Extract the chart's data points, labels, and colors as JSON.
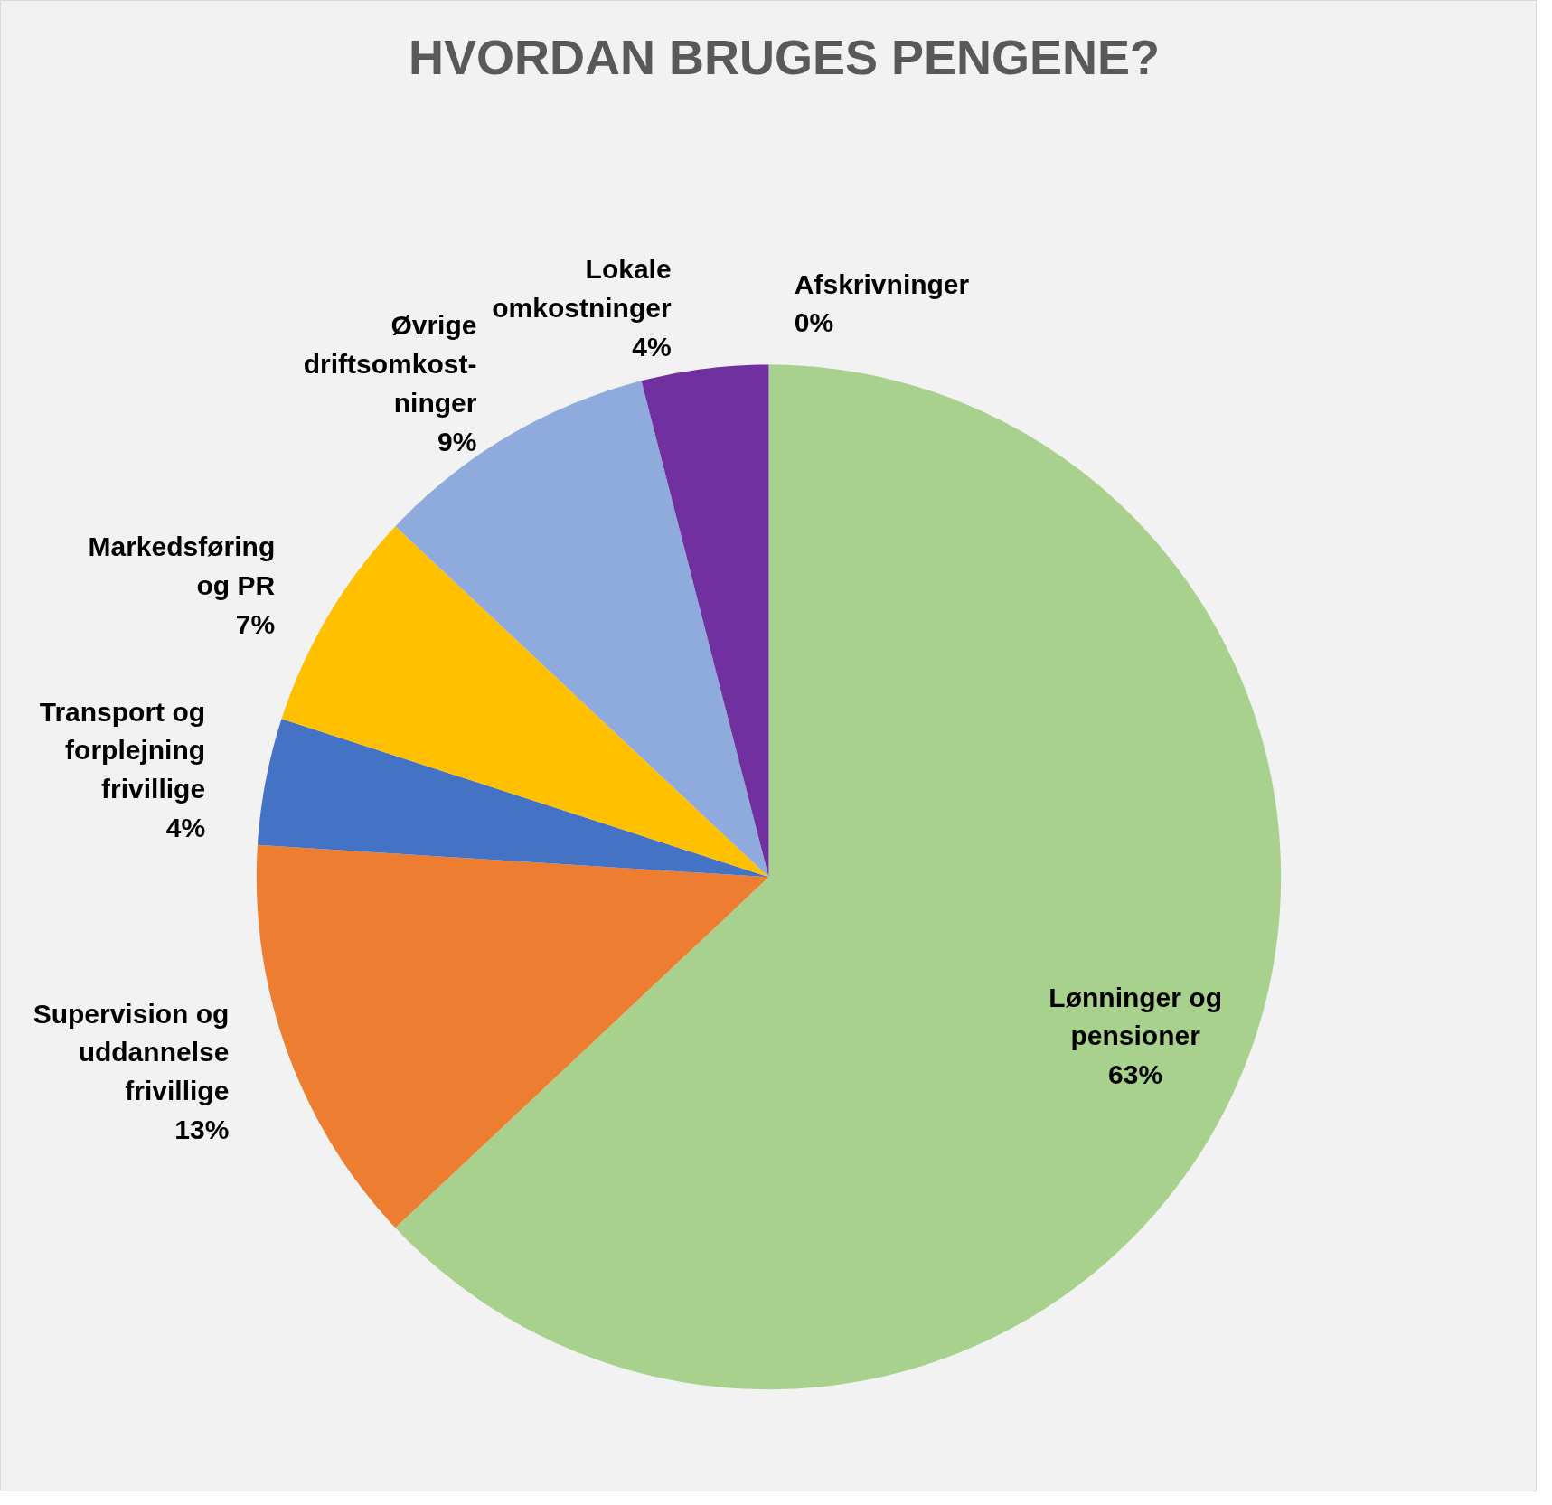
{
  "chart_data": {
    "type": "pie",
    "title": "HVORDAN BRUGES PENGENE?",
    "categories": [
      "Lønninger og pensioner",
      "Supervision og uddannelse frivillige",
      "Transport og forplejning frivillige",
      "Markedsføring og PR",
      "Øvrige driftsomkost-ninger",
      "Lokale omkostninger",
      "Afskrivninger"
    ],
    "values": [
      63,
      13,
      4,
      7,
      9,
      4,
      0
    ],
    "value_labels": [
      "63%",
      "13%",
      "4%",
      "7%",
      "9%",
      "4%",
      "0%"
    ],
    "colors": [
      "#a9d18e",
      "#ed7d31",
      "#4472c4",
      "#ffc000",
      "#8faadc",
      "#7030a0",
      "#00b0f0"
    ]
  }
}
